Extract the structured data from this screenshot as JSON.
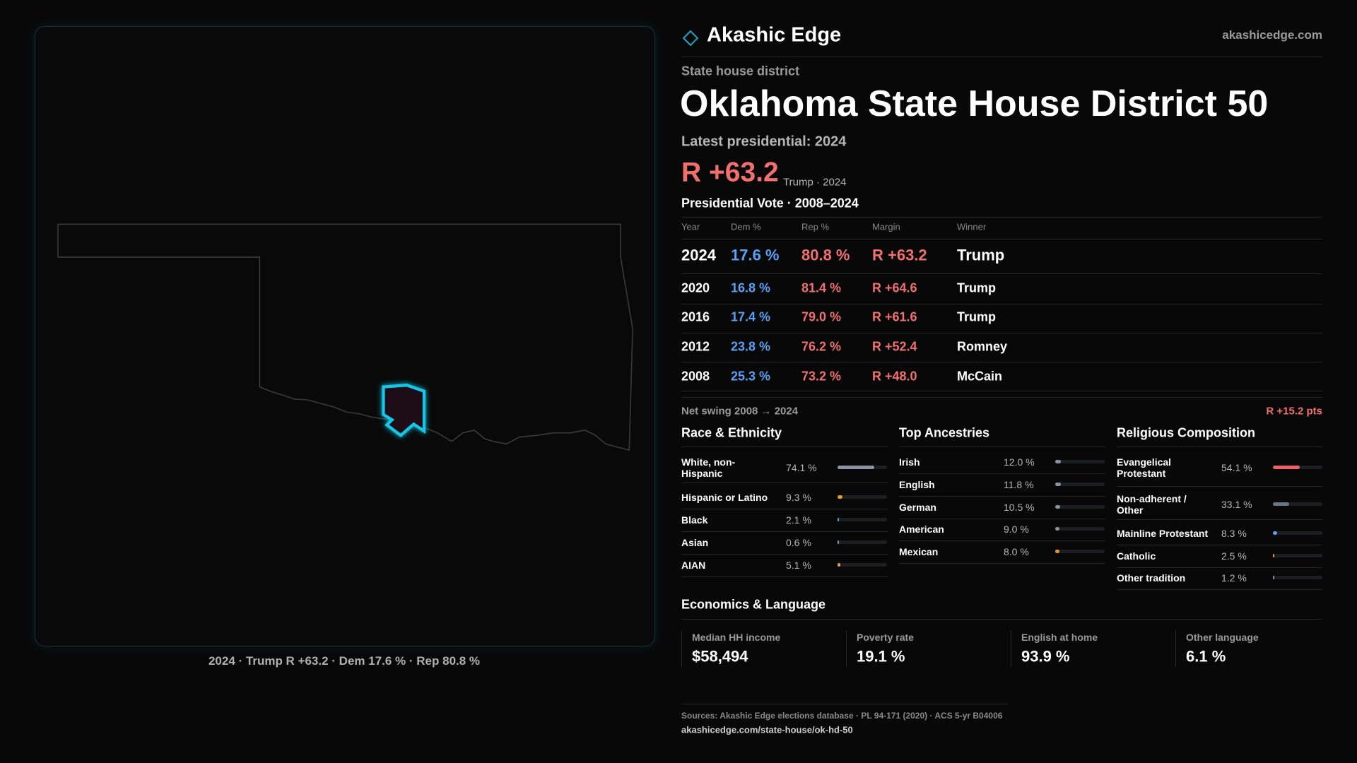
{
  "header": {
    "brand": "Akashic Edge",
    "site": "akashicedge.com"
  },
  "district": {
    "kind": "State house district",
    "title": "Oklahoma State House District 50",
    "latest": "Latest presidential: 2024",
    "margin": "R +63.2",
    "margin_note": "Trump · 2024"
  },
  "map": {
    "caption": "2024 · Trump R +63.2 · Dem 17.6 % · Rep 80.8 %"
  },
  "presidential": {
    "title": "Presidential Vote · 2008–2024",
    "columns": [
      "Year",
      "Dem %",
      "Rep %",
      "Margin",
      "Winner"
    ],
    "rows": [
      [
        "2024",
        "17.6 %",
        "80.8 %",
        "R +63.2",
        "Trump"
      ],
      [
        "2020",
        "16.8 %",
        "81.4 %",
        "R +64.6",
        "Trump"
      ],
      [
        "2016",
        "17.4 %",
        "79.0 %",
        "R +61.6",
        "Trump"
      ],
      [
        "2012",
        "23.8 %",
        "76.2 %",
        "R +52.4",
        "Romney"
      ],
      [
        "2008",
        "25.3 %",
        "73.2 %",
        "R +48.0",
        "McCain"
      ]
    ],
    "swing_label": "Net swing 2008 → 2024",
    "swing": "R +15.2 pts"
  },
  "race": {
    "title": "Race & Ethnicity",
    "rows": [
      {
        "label": "White, non-Hispanic",
        "value": 74.1,
        "value_label": "74.1 %",
        "color": "#8b93a3"
      },
      {
        "label": "Hispanic or Latino",
        "value": 9.3,
        "value_label": "9.3 %",
        "color": "#e39a2c"
      },
      {
        "label": "Black",
        "value": 2.1,
        "value_label": "2.1 %",
        "color": "#5aa0f5"
      },
      {
        "label": "Asian",
        "value": 0.6,
        "value_label": "0.6 %",
        "color": "#8b93a3"
      },
      {
        "label": "AIAN",
        "value": 5.1,
        "value_label": "5.1 %",
        "color": "#e39a2c"
      }
    ]
  },
  "ancestry": {
    "title": "Top Ancestries",
    "rows": [
      {
        "label": "Irish",
        "value": 12.0,
        "value_label": "12.0 %",
        "color": "#8b93a3"
      },
      {
        "label": "English",
        "value": 11.8,
        "value_label": "11.8 %",
        "color": "#8b93a3"
      },
      {
        "label": "German",
        "value": 10.5,
        "value_label": "10.5 %",
        "color": "#8b93a3"
      },
      {
        "label": "American",
        "value": 9.0,
        "value_label": "9.0 %",
        "color": "#8b93a3"
      },
      {
        "label": "Mexican",
        "value": 8.0,
        "value_label": "8.0 %",
        "color": "#e39a2c"
      }
    ]
  },
  "religion": {
    "title": "Religious Composition",
    "rows": [
      {
        "label": "Evangelical Protestant",
        "value": 54.1,
        "value_label": "54.1 %",
        "color": "#ef5f63"
      },
      {
        "label": "Non-adherent / Other",
        "value": 33.1,
        "value_label": "33.1 %",
        "color": "#6d7484"
      },
      {
        "label": "Mainline Protestant",
        "value": 8.3,
        "value_label": "8.3 %",
        "color": "#5aa0f5"
      },
      {
        "label": "Catholic",
        "value": 2.5,
        "value_label": "2.5 %",
        "color": "#e39a2c"
      },
      {
        "label": "Other tradition",
        "value": 1.2,
        "value_label": "1.2 %",
        "color": "#8b93a3"
      }
    ]
  },
  "economics": {
    "title": "Economics & Language",
    "items": [
      {
        "label": "Median HH income",
        "value": "$58,494"
      },
      {
        "label": "Poverty rate",
        "value": "19.1 %"
      },
      {
        "label": "English at home",
        "value": "93.9 %"
      },
      {
        "label": "Other language",
        "value": "6.1 %"
      }
    ]
  },
  "footer": {
    "sources": "Sources: Akashic Edge elections database · PL 94-171 (2020) · ACS 5-yr B04006",
    "url": "akashicedge.com/state-house/ok-hd-50"
  }
}
